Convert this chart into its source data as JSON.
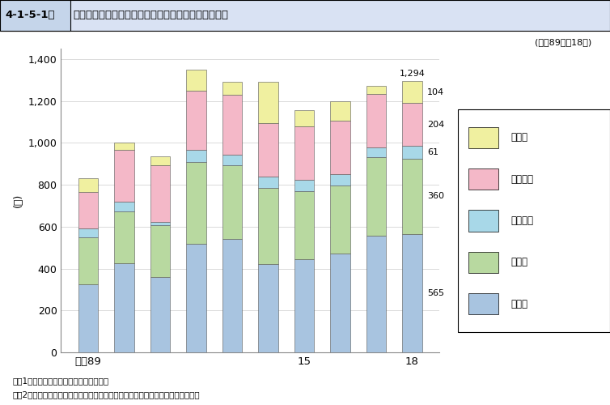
{
  "title_num": "4-1-5-1図",
  "title_text": "家庭内暴力に係る少年の就学・就労別認知件数の推移",
  "subtitle": "(平成89年～18年)",
  "ylabel": "(件)",
  "xtick_labels": [
    "平成89",
    "",
    "",
    "",
    "",
    "",
    "15",
    "",
    "",
    "18"
  ],
  "categories": [
    "中学生",
    "高校生",
    "有職少年",
    "無職少年",
    "その他"
  ],
  "colors": [
    "#a8c4e0",
    "#b8d9a0",
    "#a8d8e8",
    "#f4b8c8",
    "#f0f0a0"
  ],
  "edge_color": "#555555",
  "data": {
    "中学生": [
      323,
      425,
      358,
      520,
      540,
      420,
      445,
      470,
      555,
      565
    ],
    "高校生": [
      228,
      247,
      248,
      390,
      355,
      365,
      325,
      325,
      375,
      360
    ],
    "有職少年": [
      42,
      48,
      18,
      55,
      50,
      55,
      55,
      55,
      50,
      61
    ],
    "無職少年": [
      172,
      245,
      268,
      285,
      285,
      255,
      255,
      255,
      255,
      204
    ],
    "その他": [
      65,
      35,
      42,
      100,
      60,
      195,
      75,
      95,
      38,
      104
    ]
  },
  "total_label": "1,294",
  "ylim": [
    0,
    1450
  ],
  "yticks": [
    0,
    200,
    400,
    600,
    800,
    1000,
    1200,
    1400
  ],
  "note1": "注、1　警察庁生活安全局の資料による。",
  "note2": "　　2　「その他」は，学生・生徒のうち，小学生，浪人生その他の学生を含む。",
  "bar_width": 0.55,
  "anno_right": [
    {
      "label": "565",
      "y": 282.5
    },
    {
      "label": "360",
      "y": 745
    },
    {
      "label": "61",
      "y": 956
    },
    {
      "label": "204",
      "y": 1088
    },
    {
      "label": "104",
      "y": 1242
    }
  ],
  "anno_total": "1,294"
}
